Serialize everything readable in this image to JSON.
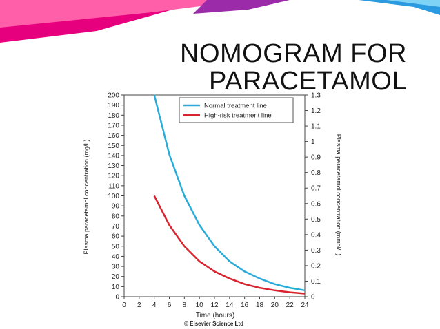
{
  "slide": {
    "title_line1": "NOMOGRAM FOR",
    "title_line2": "PARACETAMOL",
    "banner_colors": [
      "#e6007e",
      "#ff5fa8",
      "#9b2ba8",
      "#2a9be0",
      "#7fd3f5"
    ]
  },
  "chart_data": {
    "type": "line",
    "xlabel": "Time (hours)",
    "ylabel": "Plasma paracetamol concentration (mg/L)",
    "ylabel_right": "Plasma paracetamol concentration (mmol/L)",
    "xlim": [
      0,
      24
    ],
    "ylim": [
      0,
      200
    ],
    "ylim_right": [
      0,
      1.3
    ],
    "x_ticks": [
      0,
      2,
      4,
      6,
      8,
      10,
      12,
      14,
      16,
      18,
      20,
      22,
      24
    ],
    "y_ticks": [
      0,
      10,
      20,
      30,
      40,
      50,
      60,
      70,
      80,
      90,
      100,
      110,
      120,
      130,
      140,
      150,
      160,
      170,
      180,
      190,
      200
    ],
    "y_ticks_right": [
      "0",
      "0.1",
      "0.2",
      "0.3",
      "0.4",
      "0.5",
      "0.6",
      "0.7",
      "0.8",
      "0.9",
      "1",
      "1.1",
      "1.2",
      "1.3"
    ],
    "legend_position": "top-right",
    "grid": false,
    "series": [
      {
        "name": "Normal treatment line",
        "color": "#29abd9",
        "x": [
          4,
          6,
          8,
          10,
          12,
          14,
          16,
          18,
          20,
          22,
          24
        ],
        "y": [
          200,
          141,
          100,
          71,
          50,
          35,
          25,
          18,
          12.5,
          8.8,
          6.3
        ]
      },
      {
        "name": "High-risk treatment line",
        "color": "#d9232e",
        "x": [
          4,
          6,
          8,
          10,
          12,
          14,
          16,
          18,
          20,
          22,
          24
        ],
        "y": [
          100,
          71,
          50,
          35,
          25,
          18,
          12.5,
          8.8,
          6.3,
          4.4,
          3.1
        ]
      }
    ],
    "credit": "© Elsevier Science Ltd"
  }
}
